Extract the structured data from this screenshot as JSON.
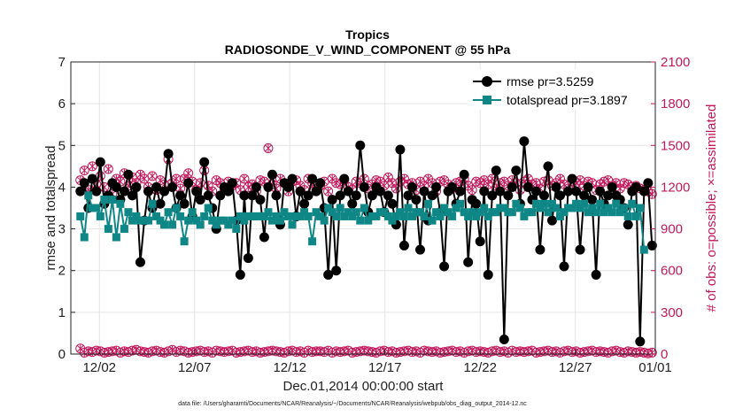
{
  "chart_data": {
    "type": "line",
    "title": "Tropics",
    "subtitle": "RADIOSONDE_V_WIND_COMPONENT @ 55 hPa",
    "xlabel": "Dec.01,2014 00:00:00 start",
    "ylabel_left": "rmse and totalspread",
    "ylabel_right": "# of obs: o=possible; ×=assimilated",
    "ylim_left": [
      0,
      7
    ],
    "yticks_left": [
      "0",
      "1",
      "2",
      "3",
      "4",
      "5",
      "6",
      "7"
    ],
    "ylim_right": [
      0,
      2100
    ],
    "yticks_right": [
      "0",
      "300",
      "600",
      "900",
      "1200",
      "1500",
      "1800",
      "2100"
    ],
    "xlim": [
      0.5,
      31.2
    ],
    "xticks": [
      {
        "x": 2,
        "label": "12/02"
      },
      {
        "x": 7,
        "label": "12/07"
      },
      {
        "x": 12,
        "label": "12/12"
      },
      {
        "x": 17,
        "label": "12/17"
      },
      {
        "x": 22,
        "label": "12/22"
      },
      {
        "x": 27,
        "label": "12/27"
      },
      {
        "x": 32,
        "label": "01/01"
      }
    ],
    "legend": [
      "rmse pr=3.5259",
      "totalspread pr=3.1897"
    ],
    "legend_position": "top-right",
    "footer": "data file: /Users/gharamti/Documents/NCAR/Reanalysis/~/Documents/NCAR/Reanalysis/webpub/obs_diag_output_2014-12.nc",
    "colors": {
      "rmse": "#000000",
      "spread": "#0f8787",
      "obs": "#c2185b"
    },
    "series": [
      {
        "name": "rmse",
        "values": [
          3.9,
          4.1,
          3.5,
          4.2,
          3.9,
          4.6,
          3.6,
          3.8,
          4.1,
          4.0,
          3.7,
          3.9,
          4.3,
          3.8,
          4.0,
          2.2,
          3.2,
          3.9,
          3.5,
          4.0,
          3.6,
          3.9,
          4.8,
          4.0,
          3.5,
          3.8,
          3.6,
          4.1,
          3.3,
          3.9,
          3.7,
          4.6,
          3.8,
          3.5,
          3.0,
          3.8,
          4.0,
          3.9,
          4.1,
          3.2,
          1.9,
          3.8,
          2.3,
          3.8,
          4.0,
          3.7,
          2.8,
          4.0,
          4.3,
          3.8,
          3.1,
          4.1,
          4.0,
          4.2,
          3.3,
          3.9,
          3.6,
          3.8,
          4.2,
          3.9,
          4.1,
          3.5,
          1.9,
          3.7,
          2.0,
          3.8,
          4.2,
          3.9,
          3.6,
          3.8,
          5.0,
          4.0,
          3.4,
          3.8,
          4.0,
          3.9,
          3.4,
          3.8,
          3.6,
          3.1,
          4.9,
          2.6,
          3.8,
          4.0,
          3.7,
          2.5,
          3.9,
          3.2,
          3.8,
          4.0,
          3.4,
          2.1,
          3.9,
          4.0,
          3.6,
          3.9,
          4.3,
          2.2,
          3.7,
          3.6,
          2.7,
          3.9,
          1.9,
          3.8,
          4.4,
          3.9,
          0.35,
          3.8,
          4.0,
          4.4,
          3.6,
          5.1,
          4.0,
          3.7,
          3.9,
          2.5,
          3.8,
          4.5,
          3.2,
          4.0,
          3.8,
          2.1,
          3.9,
          4.2,
          3.9,
          2.5,
          3.8,
          4.0,
          3.7,
          1.9,
          3.9,
          3.6,
          3.8,
          4.0,
          3.8,
          3.7,
          3.5,
          3.1,
          3.9,
          4.0,
          0.3,
          3.9,
          4.1,
          2.6
        ]
      },
      {
        "name": "totalspread",
        "values": [
          3.3,
          2.8,
          3.8,
          3.5,
          3.5,
          3.3,
          3.7,
          3.0,
          3.7,
          2.8,
          3.6,
          3.0,
          3.4,
          3.2,
          3.3,
          3.2,
          3.2,
          3.2,
          3.6,
          3.3,
          3.2,
          3.1,
          3.4,
          3.1,
          3.5,
          3.3,
          2.7,
          3.2,
          3.4,
          3.2,
          3.1,
          3.3,
          3.5,
          3.2,
          3.1,
          3.2,
          3.2,
          3.1,
          3.2,
          3.0,
          3.3,
          3.2,
          3.3,
          3.3,
          3.3,
          3.3,
          3.3,
          3.4,
          3.2,
          3.3,
          3.2,
          3.4,
          3.3,
          3.1,
          3.3,
          3.3,
          3.4,
          3.3,
          2.7,
          3.4,
          3.3,
          3.2,
          3.5,
          3.4,
          3.3,
          3.5,
          3.3,
          3.4,
          3.3,
          3.4,
          3.2,
          3.5,
          3.2,
          3.3,
          3.3,
          3.4,
          3.4,
          3.3,
          3.2,
          3.3,
          3.4,
          3.3,
          3.5,
          3.3,
          3.4,
          3.4,
          3.3,
          3.6,
          3.2,
          3.4,
          3.3,
          3.5,
          3.4,
          3.3,
          3.5,
          3.6,
          3.4,
          3.3,
          3.4,
          3.3,
          3.4,
          3.5,
          3.3,
          3.4,
          3.4,
          3.5,
          3.5,
          3.4,
          3.4,
          3.6,
          3.5,
          3.3,
          3.4,
          3.4,
          3.6,
          3.5,
          3.6,
          3.4,
          3.6,
          3.5,
          3.3,
          3.4,
          3.5,
          3.5,
          3.6,
          3.5,
          3.6,
          3.4,
          3.5,
          3.4,
          3.6,
          3.4,
          3.5,
          3.4,
          3.6,
          3.4,
          3.5,
          3.3,
          3.6,
          3.3,
          3.5,
          2.5
        ]
      },
      {
        "name": "obs_possible",
        "values": [
          40,
          10,
          20,
          15,
          25,
          20,
          10,
          15,
          20,
          25,
          10,
          20,
          15,
          25,
          30,
          20,
          15,
          10,
          20,
          25,
          15,
          10,
          20,
          30,
          15,
          25,
          20,
          10,
          15,
          20,
          25,
          15,
          20,
          10,
          25,
          20,
          15,
          20,
          25,
          10,
          15,
          20,
          25,
          15,
          20,
          10,
          15,
          20,
          25,
          20,
          15,
          10,
          20,
          25,
          15,
          20,
          10,
          25,
          15,
          20,
          20,
          15,
          25,
          10,
          20,
          15,
          20,
          25,
          10,
          15,
          20,
          25,
          20,
          15,
          10,
          20,
          25,
          15,
          20,
          10,
          15,
          20,
          25,
          15,
          20,
          10,
          25,
          20,
          15,
          20,
          10,
          15,
          20,
          25,
          15,
          20,
          10,
          20,
          25,
          15,
          20,
          15,
          10,
          20,
          25,
          15,
          20,
          10,
          25,
          15,
          20,
          15,
          20,
          25,
          10,
          15,
          20,
          25,
          15,
          20,
          10,
          20,
          25,
          15,
          20,
          10,
          15,
          20,
          25,
          15,
          20,
          15,
          10,
          20,
          25,
          15,
          10,
          20,
          15,
          10,
          15,
          10,
          5,
          10
        ]
      },
      {
        "name": "obs_possible_upper",
        "values": [
          1250,
          1320,
          1180,
          1350,
          1220,
          1280,
          1200,
          1330,
          1150,
          1260,
          1240,
          1300,
          1210,
          1270,
          1230,
          1290,
          1260,
          1200,
          1280,
          1180,
          1250,
          1220,
          1400,
          1230,
          1260,
          1190,
          1260,
          1300,
          1240,
          1180,
          1230,
          1320,
          1210,
          1170,
          1250,
          1230,
          1190,
          1240,
          1210,
          1230,
          1180,
          1260,
          1200,
          1220,
          1170,
          1250,
          1240,
          1480,
          1220,
          1190,
          1260,
          1230,
          1170,
          1240,
          1250,
          1210,
          1180,
          1260,
          1230,
          1190,
          1210,
          1240,
          1170,
          1260,
          1230,
          1220,
          1250,
          1200,
          1180,
          1240,
          1230,
          1260,
          1190,
          1220,
          1250,
          1240,
          1210,
          1270,
          1230,
          1190,
          1240,
          1260,
          1220,
          1230,
          1180,
          1240,
          1210,
          1260,
          1230,
          1170,
          1240,
          1250,
          1220,
          1190,
          1230,
          1240,
          1260,
          1210,
          1180,
          1240,
          1230,
          1250,
          1220,
          1260,
          1190,
          1230,
          1240,
          1210,
          1250,
          1230,
          1180,
          1240,
          1260,
          1220,
          1230,
          1190,
          1240,
          1250,
          1210,
          1230,
          1260,
          1220,
          1190,
          1240,
          1230,
          1250,
          1210,
          1240,
          1230,
          1180,
          1220,
          1240,
          1250,
          1210,
          1230,
          1190,
          1230,
          1220,
          1200,
          1210,
          1190,
          1180,
          1170,
          1150
        ]
      }
    ]
  }
}
